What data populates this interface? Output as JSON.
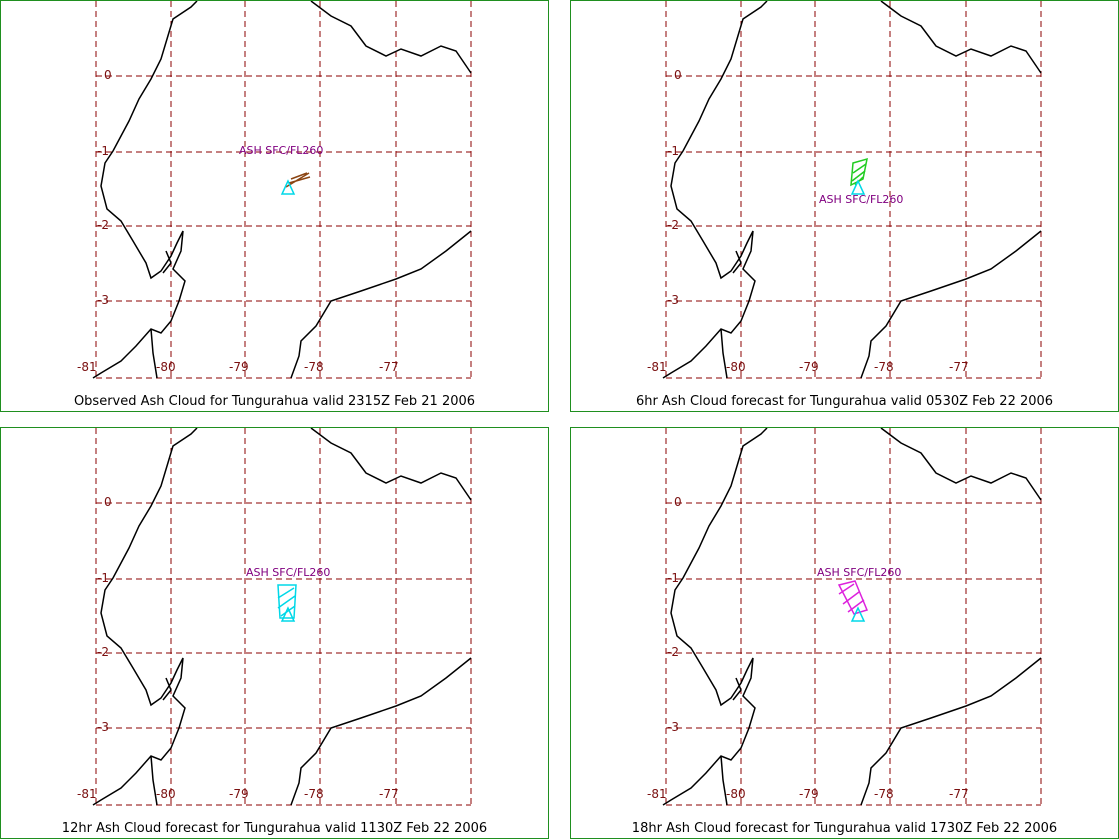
{
  "volcano": "Tungurahua",
  "label_colors": {
    "grid": "#8b0000",
    "coast": "#000000",
    "ash_text": "#800080",
    "frame": "#1f8f1f"
  },
  "lat_ticks": [
    "0",
    "-1",
    "-2",
    "-3"
  ],
  "lon_ticks": [
    "-81",
    "-80",
    "-79",
    "-78",
    "-77"
  ],
  "panels": [
    {
      "caption": "Observed Ash Cloud for Tungurahua valid 2315Z Feb 21 2006",
      "ash_label": "ASH SFC/FL260",
      "ash_color": "#8b4513",
      "label_position": "above"
    },
    {
      "caption": "6hr Ash Cloud forecast for Tungurahua valid 0530Z Feb 22 2006",
      "ash_label": "ASH SFC/FL260",
      "ash_color": "#22cc22",
      "label_position": "below"
    },
    {
      "caption": "12hr Ash Cloud forecast for Tungurahua valid 1130Z Feb 22 2006",
      "ash_label": "ASH SFC/FL260",
      "ash_color": "#00d8e8",
      "label_position": "above"
    },
    {
      "caption": "18hr Ash Cloud forecast for Tungurahua valid 1730Z Feb 22 2006",
      "ash_label": "ASH SFC/FL260",
      "ash_color": "#dd22dd",
      "label_position": "above"
    }
  ]
}
